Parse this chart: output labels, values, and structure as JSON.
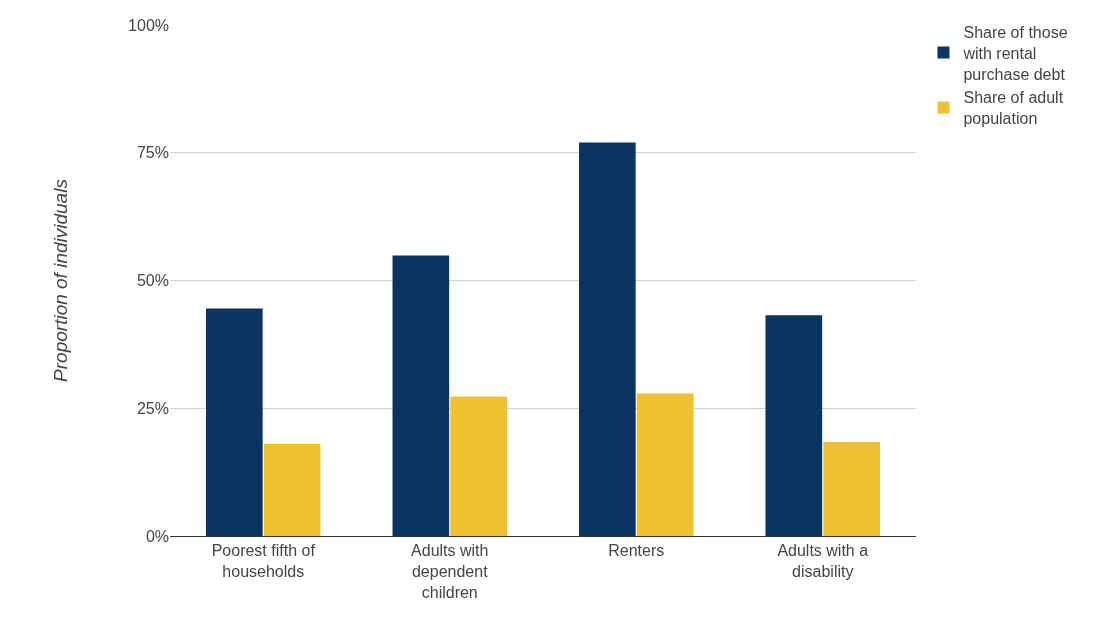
{
  "chart_data": {
    "type": "bar",
    "ylabel": "Proportion of individuals",
    "categories": [
      "Poorest fifth of households",
      "Adults with dependent children",
      "Renters",
      "Adults with a disability"
    ],
    "series": [
      {
        "name": "Share of those with rental purchase debt",
        "color": "#0a3560",
        "values": [
          44.5,
          54.9,
          77.0,
          43.2
        ]
      },
      {
        "name": "Share of adult population",
        "color": "#f0c030",
        "values": [
          18.0,
          27.3,
          27.9,
          18.4
        ]
      }
    ],
    "ylim": [
      0,
      100
    ],
    "yticks": [
      {
        "value": 0,
        "label": "0%"
      },
      {
        "value": 25,
        "label": "25%"
      },
      {
        "value": 50,
        "label": "50%"
      },
      {
        "value": 75,
        "label": "75%"
      },
      {
        "value": 100,
        "label": "100%"
      }
    ],
    "grid": "y",
    "legend": "top right"
  }
}
